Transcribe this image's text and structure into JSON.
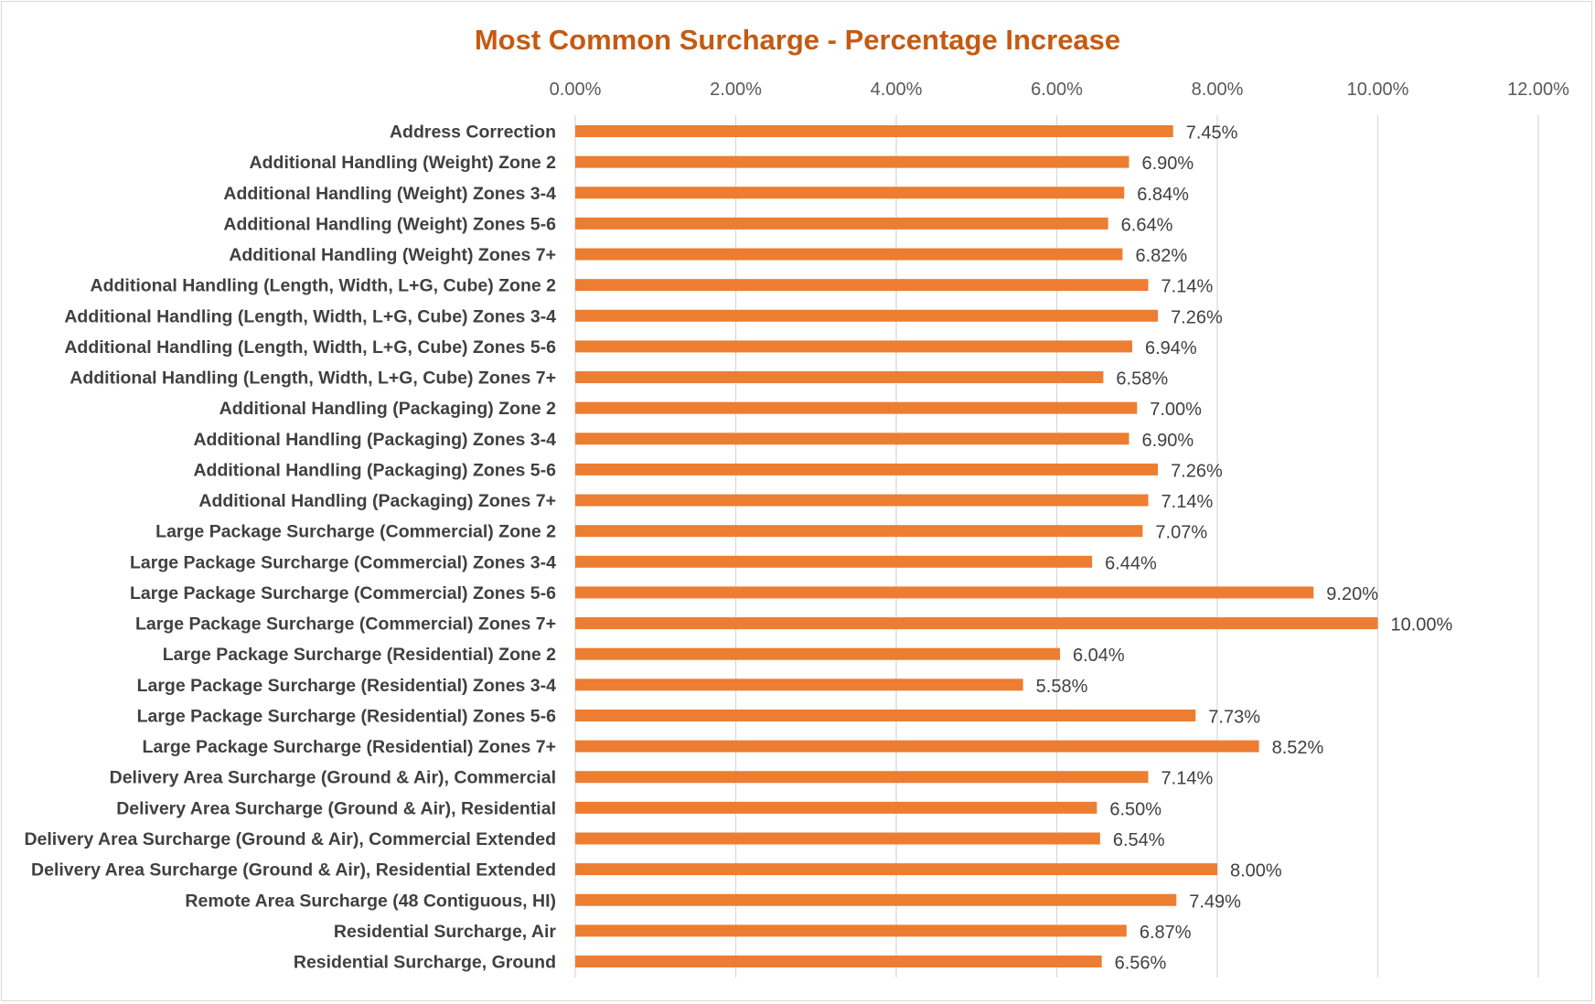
{
  "chart_data": {
    "type": "bar",
    "orientation": "horizontal",
    "title": "Most Common Surcharge - Percentage Increase",
    "xlabel": "",
    "ylabel": "",
    "xlim": [
      0,
      12
    ],
    "x_ticks": [
      0,
      2,
      4,
      6,
      8,
      10,
      12
    ],
    "x_tick_labels": [
      "0.00%",
      "2.00%",
      "4.00%",
      "6.00%",
      "8.00%",
      "10.00%",
      "12.00%"
    ],
    "x_axis_position": "top",
    "grid": true,
    "legend": "none",
    "bar_color": "#ed7d31",
    "title_color": "#c55a11",
    "categories": [
      "Address Correction",
      "Additional Handling (Weight) Zone 2",
      "Additional Handling (Weight) Zones 3-4",
      "Additional Handling (Weight) Zones 5-6",
      "Additional Handling (Weight) Zones 7+",
      "Additional Handling (Length, Width, L+G, Cube) Zone 2",
      "Additional Handling  (Length, Width, L+G, Cube) Zones 3-4",
      "Additional Handling  (Length, Width, L+G, Cube) Zones 5-6",
      "Additional Handling  (Length, Width, L+G, Cube) Zones 7+",
      "Additional Handling (Packaging) Zone 2",
      "Additional Handling (Packaging) Zones 3-4",
      "Additional Handling (Packaging) Zones 5-6",
      "Additional Handling (Packaging) Zones 7+",
      "Large Package Surcharge (Commercial) Zone 2",
      "Large Package Surcharge (Commercial) Zones 3-4",
      "Large Package Surcharge (Commercial) Zones 5-6",
      "Large Package Surcharge (Commercial) Zones 7+",
      "Large Package Surcharge (Residential) Zone 2",
      "Large Package Surcharge (Residential) Zones 3-4",
      "Large Package Surcharge (Residential) Zones 5-6",
      "Large Package Surcharge (Residential) Zones 7+",
      "Delivery Area Surcharge (Ground & Air), Commercial",
      "Delivery Area Surcharge (Ground & Air), Residential",
      "Delivery Area Surcharge (Ground & Air), Commercial Extended",
      "Delivery Area Surcharge (Ground & Air), Residential Extended",
      "Remote Area Surcharge (48 Contiguous, HI)",
      "Residential Surcharge, Air",
      "Residential Surcharge, Ground"
    ],
    "values": [
      7.45,
      6.9,
      6.84,
      6.64,
      6.82,
      7.14,
      7.26,
      6.94,
      6.58,
      7.0,
      6.9,
      7.26,
      7.14,
      7.07,
      6.44,
      9.2,
      10.0,
      6.04,
      5.58,
      7.73,
      8.52,
      7.14,
      6.5,
      6.54,
      8.0,
      7.49,
      6.87,
      6.56
    ],
    "data_labels": [
      "7.45%",
      "6.90%",
      "6.84%",
      "6.64%",
      "6.82%",
      "7.14%",
      "7.26%",
      "6.94%",
      "6.58%",
      "7.00%",
      "6.90%",
      "7.26%",
      "7.14%",
      "7.07%",
      "6.44%",
      "9.20%",
      "10.00%",
      "6.04%",
      "5.58%",
      "7.73%",
      "8.52%",
      "7.14%",
      "6.50%",
      "6.54%",
      "8.00%",
      "7.49%",
      "6.87%",
      "6.56%"
    ]
  }
}
